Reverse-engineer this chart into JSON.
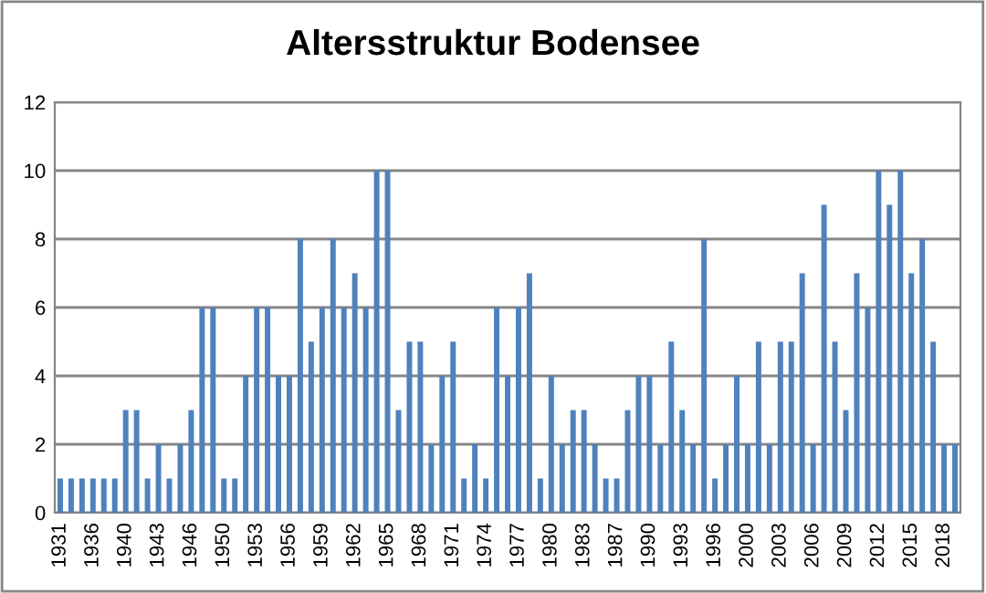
{
  "chart_data": {
    "type": "bar",
    "title": "Altersstruktur Bodensee",
    "categories": [
      "1931",
      null,
      null,
      "1936",
      null,
      null,
      "1940",
      null,
      null,
      "1943",
      null,
      null,
      "1946",
      null,
      null,
      "1950",
      null,
      null,
      "1953",
      null,
      null,
      "1956",
      null,
      null,
      "1959",
      null,
      null,
      "1962",
      null,
      null,
      "1965",
      null,
      null,
      "1968",
      null,
      null,
      "1971",
      null,
      null,
      "1974",
      null,
      null,
      "1977",
      null,
      null,
      "1980",
      null,
      null,
      "1983",
      null,
      null,
      "1987",
      null,
      null,
      "1990",
      null,
      null,
      "1993",
      null,
      null,
      "1996",
      null,
      null,
      "2000",
      null,
      null,
      "2003",
      null,
      null,
      "2006",
      null,
      null,
      "2009",
      null,
      null,
      "2012",
      null,
      null,
      "2015",
      null,
      null,
      "2018",
      null
    ],
    "values": [
      1,
      1,
      1,
      1,
      1,
      1,
      3,
      3,
      1,
      2,
      1,
      2,
      3,
      6,
      6,
      1,
      1,
      4,
      6,
      6,
      4,
      4,
      8,
      5,
      6,
      8,
      6,
      7,
      6,
      10,
      10,
      3,
      5,
      5,
      2,
      4,
      5,
      1,
      2,
      1,
      6,
      4,
      6,
      7,
      1,
      4,
      2,
      3,
      3,
      2,
      1,
      1,
      3,
      4,
      4,
      2,
      5,
      3,
      2,
      8,
      1,
      2,
      4,
      2,
      5,
      2,
      5,
      5,
      7,
      2,
      9,
      5,
      3,
      7,
      6,
      10,
      9,
      10,
      7,
      8,
      5,
      2,
      2
    ],
    "color": "#4f81bd",
    "ylim": [
      0,
      12
    ],
    "yticks": [
      0,
      2,
      4,
      6,
      8,
      10,
      12
    ],
    "grid": "y"
  }
}
